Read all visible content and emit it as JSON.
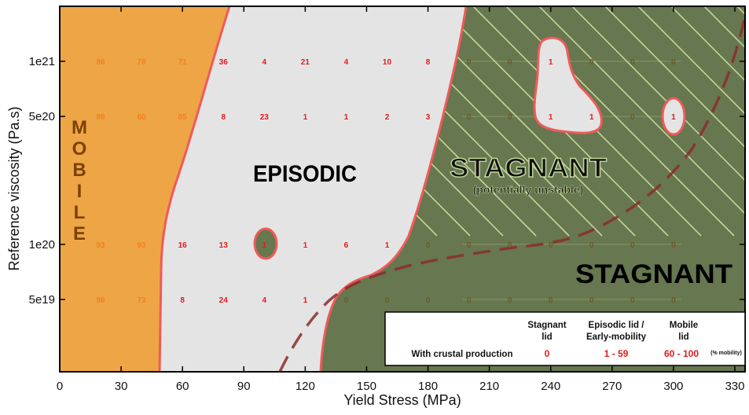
{
  "chart_data": {
    "type": "heatmap",
    "xlabel": "Yield Stress (MPa)",
    "ylabel": "Reference viscosity (Pa.s)",
    "xlim": [
      0,
      335
    ],
    "x_ticks": [
      0,
      30,
      60,
      90,
      120,
      150,
      180,
      210,
      240,
      270,
      300,
      330
    ],
    "y_ticks": [
      "5e19",
      "1e20",
      "5e20",
      "1e21"
    ],
    "y_scale": "log",
    "x": [
      20,
      40,
      60,
      80,
      100,
      120,
      140,
      160,
      180,
      200,
      220,
      240,
      260,
      280,
      300
    ],
    "rows": [
      {
        "y": "1e21",
        "values": [
          86,
          78,
          71,
          36,
          4,
          21,
          4,
          10,
          8,
          0,
          0,
          1,
          0,
          0,
          0
        ]
      },
      {
        "y": "5e20",
        "values": [
          89,
          60,
          85,
          8,
          23,
          1,
          1,
          2,
          3,
          0,
          0,
          1,
          1,
          0,
          1
        ]
      },
      {
        "y": "1e20",
        "values": [
          93,
          93,
          16,
          13,
          1,
          1,
          6,
          1,
          0,
          0,
          0,
          0,
          0,
          0,
          0
        ]
      },
      {
        "y": "5e19",
        "values": [
          96,
          73,
          8,
          24,
          4,
          1,
          0,
          0,
          0,
          0,
          0,
          0,
          0,
          0,
          0
        ]
      }
    ],
    "regions": {
      "mobile": "MOBILE",
      "episodic": "EPISODIC",
      "stagnant_upper": "STAGNANT",
      "stagnant_upper_note": "(potentially unstable)",
      "stagnant_lower": "STAGNANT"
    },
    "colors": {
      "mobile": "#eea546",
      "episodic": "#e4e4e4",
      "stagnant": "#67774f",
      "boundary": "#f05a5a",
      "dashed": "#8b2c2c",
      "hatch": "#c3d59a",
      "mobile_text": "#7a4204",
      "value_red": "#e31a1c",
      "value_orange": "#f0821e",
      "value_dark": "#6b5a2a"
    },
    "legend": {
      "row_label": "With crustal production",
      "columns": [
        {
          "header_1": "Stagnant",
          "header_2": "lid",
          "value": "0"
        },
        {
          "header_1": "Episodic lid /",
          "header_2": "Early-mobility",
          "value": "1 - 59"
        },
        {
          "header_1": "Mobile",
          "header_2": "lid",
          "value": "60 - 100"
        }
      ],
      "note": "(% mobility)"
    }
  }
}
